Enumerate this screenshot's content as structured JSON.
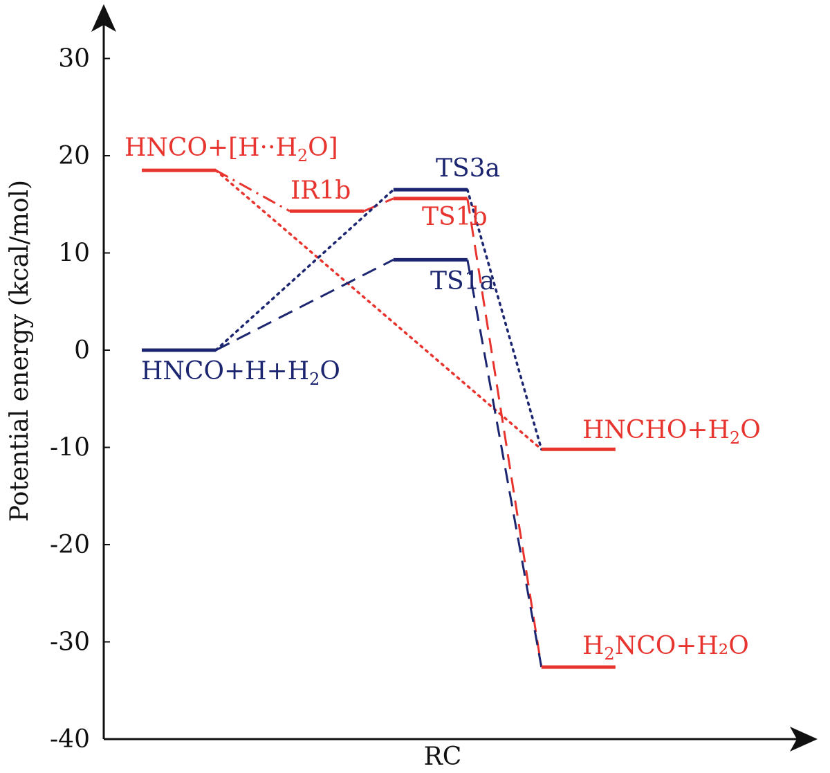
{
  "chart_data": {
    "type": "line",
    "title": "",
    "xlabel": "RC",
    "ylabel": "Potential energy (kcal/mol)",
    "ylim": [
      -40,
      30
    ],
    "yticks": [
      "30",
      "20",
      "10",
      "0",
      "-10",
      "-20",
      "-30",
      "-40"
    ],
    "grid": false,
    "colors": {
      "red": "#e8342e",
      "blue": "#1b2570",
      "axis": "#111111"
    },
    "levels": [
      {
        "id": "hnco-h-h2o",
        "color": "blue",
        "y": 0,
        "x": [
          1.0,
          2.0
        ],
        "text": "HNCO+H+H",
        "sub": "2",
        "text_after": "O"
      },
      {
        "id": "hnco-h-h2o-complex",
        "color": "red",
        "y": 18.5,
        "x": [
          1.0,
          2.0
        ],
        "text": "HNCO+[H··H",
        "sub": "2",
        "text_after": "O]"
      },
      {
        "id": "ir1b",
        "color": "red",
        "y": 14.3,
        "x": [
          3.0,
          4.0
        ],
        "text": "IR1b",
        "sub": "",
        "text_after": ""
      },
      {
        "id": "ts3a",
        "color": "blue",
        "y": 16.5,
        "x": [
          4.4,
          5.4
        ],
        "text": "TS3a",
        "sub": "",
        "text_after": ""
      },
      {
        "id": "ts1b",
        "color": "red",
        "y": 15.6,
        "x": [
          4.4,
          5.4
        ],
        "text": "TS1b",
        "sub": "",
        "text_after": ""
      },
      {
        "id": "ts1a",
        "color": "blue",
        "y": 9.3,
        "x": [
          4.4,
          5.4
        ],
        "text": "TS1a",
        "sub": "",
        "text_after": ""
      },
      {
        "id": "hncho-h2o",
        "color": "red",
        "y": -10.2,
        "x": [
          6.4,
          7.4
        ],
        "text": "HNCHO+H",
        "sub": "2",
        "text_after": "O"
      },
      {
        "id": "h2nco-h2o",
        "color": "red",
        "y": -32.6,
        "x": [
          6.4,
          7.4
        ],
        "text": "H",
        "sub": "2",
        "text_after": "NCO+H₂O"
      }
    ],
    "connectors": [
      {
        "color": "red",
        "style": "dashdot",
        "from": [
          2.0,
          18.5
        ],
        "to": [
          3.0,
          14.3
        ]
      },
      {
        "color": "red",
        "style": "dash",
        "from": [
          4.0,
          14.3
        ],
        "to": [
          4.4,
          15.6
        ]
      },
      {
        "color": "red",
        "style": "dot",
        "from": [
          2.0,
          18.5
        ],
        "to": [
          6.4,
          -10.2
        ]
      },
      {
        "color": "red",
        "style": "dash",
        "from": [
          5.4,
          15.6
        ],
        "to": [
          6.4,
          -32.6
        ]
      },
      {
        "color": "blue",
        "style": "dot",
        "from": [
          2.0,
          0
        ],
        "to": [
          4.4,
          16.5
        ]
      },
      {
        "color": "blue",
        "style": "dash",
        "from": [
          2.0,
          0
        ],
        "to": [
          4.4,
          9.3
        ]
      },
      {
        "color": "blue",
        "style": "dot",
        "from": [
          5.4,
          16.5
        ],
        "to": [
          6.4,
          -10.2
        ]
      },
      {
        "color": "blue",
        "style": "dash",
        "from": [
          5.4,
          9.3
        ],
        "to": [
          6.4,
          -32.6
        ]
      }
    ]
  }
}
